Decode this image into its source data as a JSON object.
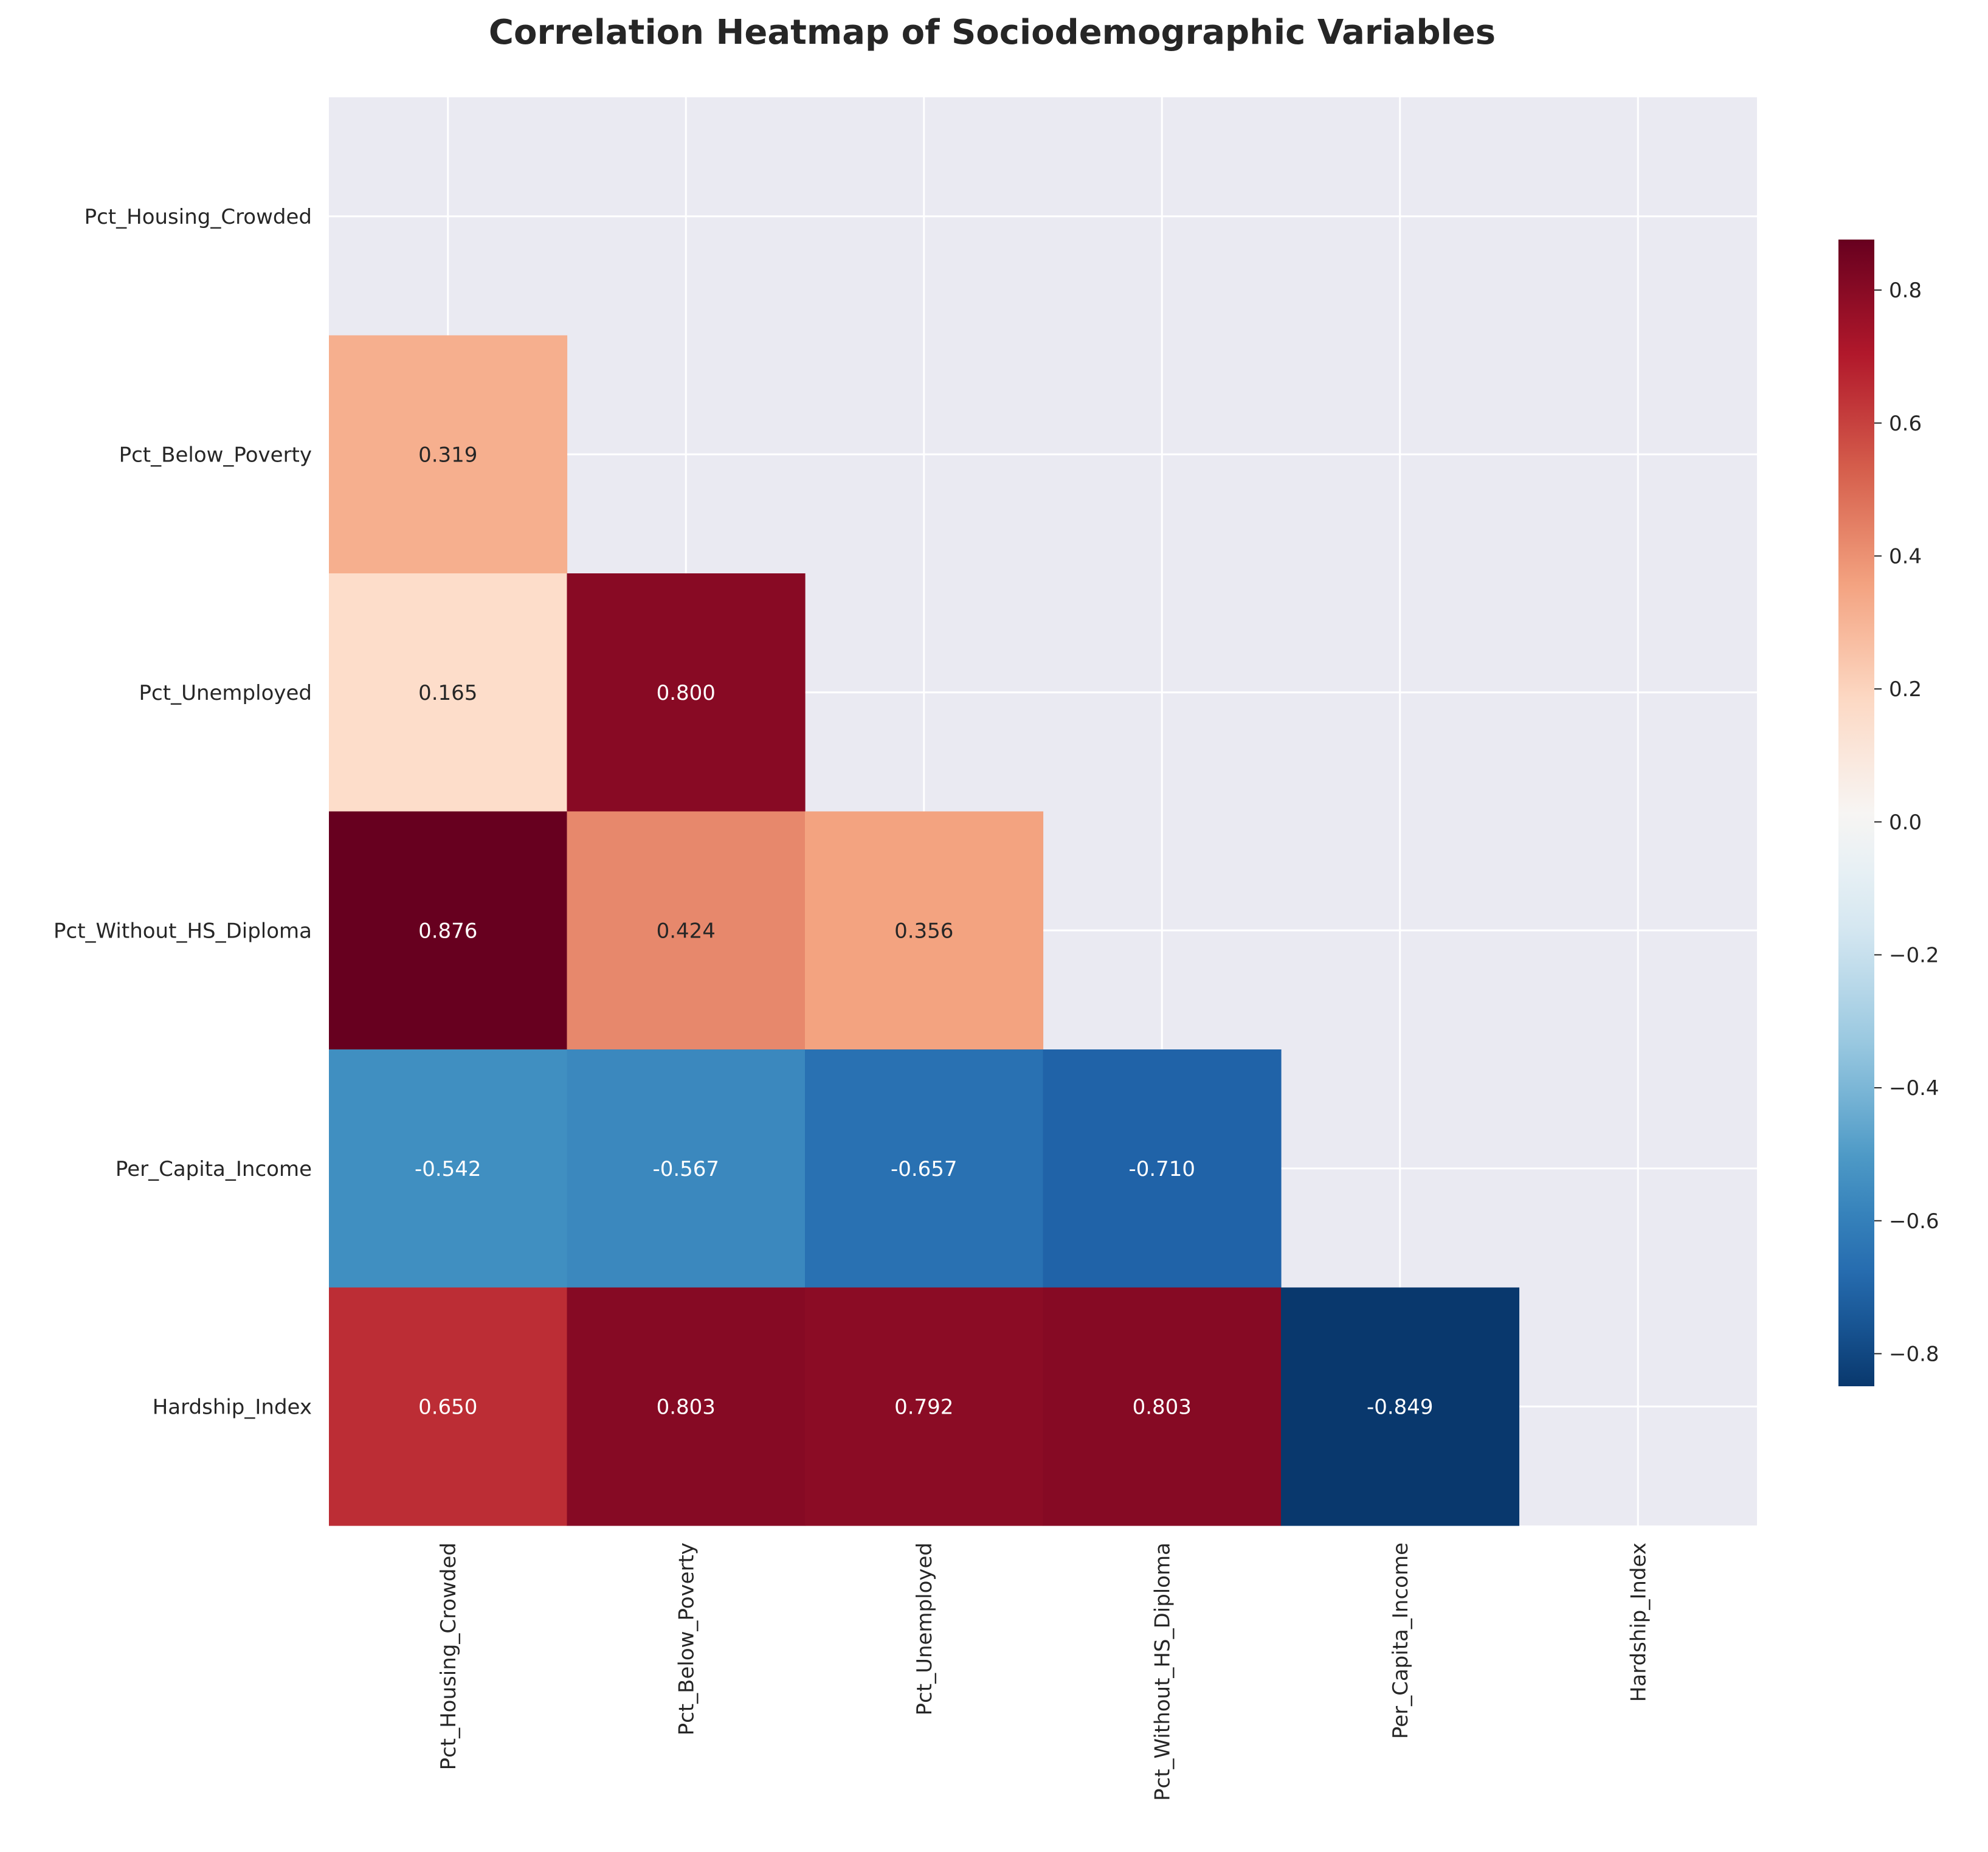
{
  "chart_data": {
    "type": "heatmap",
    "title": "Correlation Heatmap of Sociodemographic Variables",
    "variables": [
      "Pct_Housing_Crowded",
      "Pct_Below_Poverty",
      "Pct_Unemployed",
      "Pct_Without_HS_Diploma",
      "Per_Capita_Income",
      "Hardship_Index"
    ],
    "mask": "upper-triangle-including-diagonal",
    "cells": [
      {
        "row": 1,
        "col": 0,
        "value": 0.319,
        "label": "0.319"
      },
      {
        "row": 2,
        "col": 0,
        "value": 0.165,
        "label": "0.165"
      },
      {
        "row": 2,
        "col": 1,
        "value": 0.8,
        "label": "0.800"
      },
      {
        "row": 3,
        "col": 0,
        "value": 0.876,
        "label": "0.876"
      },
      {
        "row": 3,
        "col": 1,
        "value": 0.424,
        "label": "0.424"
      },
      {
        "row": 3,
        "col": 2,
        "value": 0.356,
        "label": "0.356"
      },
      {
        "row": 4,
        "col": 0,
        "value": -0.542,
        "label": "-0.542"
      },
      {
        "row": 4,
        "col": 1,
        "value": -0.567,
        "label": "-0.567"
      },
      {
        "row": 4,
        "col": 2,
        "value": -0.657,
        "label": "-0.657"
      },
      {
        "row": 4,
        "col": 3,
        "value": -0.71,
        "label": "-0.710"
      },
      {
        "row": 5,
        "col": 0,
        "value": 0.65,
        "label": "0.650"
      },
      {
        "row": 5,
        "col": 1,
        "value": 0.803,
        "label": "0.803"
      },
      {
        "row": 5,
        "col": 2,
        "value": 0.792,
        "label": "0.792"
      },
      {
        "row": 5,
        "col": 3,
        "value": 0.803,
        "label": "0.803"
      },
      {
        "row": 5,
        "col": 4,
        "value": -0.849,
        "label": "-0.849"
      }
    ],
    "colormap": "RdBu_r",
    "vmin": -0.876,
    "vmax": 0.876,
    "colorbar": {
      "ticks": [
        0.8,
        0.6,
        0.4,
        0.2,
        0.0,
        -0.2,
        -0.4,
        -0.6,
        -0.8
      ],
      "tick_labels": [
        "0.8",
        "0.6",
        "0.4",
        "0.2",
        "0.0",
        "−0.2",
        "−0.4",
        "−0.6",
        "−0.8"
      ],
      "min": -0.849,
      "max": 0.876
    },
    "grid": true,
    "colors": {
      "background": "#eaeaf2",
      "grid": "#ffffff",
      "text": "#262626"
    }
  }
}
